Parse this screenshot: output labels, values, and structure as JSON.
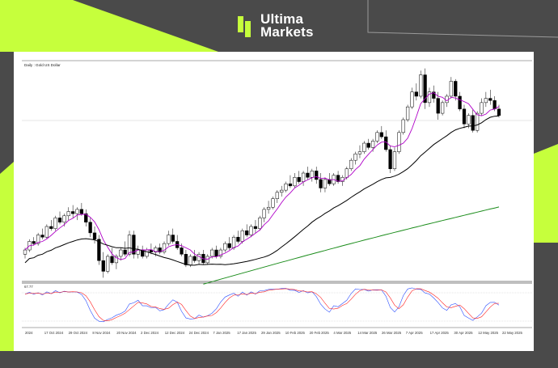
{
  "brand": {
    "line1": "Ultima",
    "line2": "Markets",
    "accent": "#c6ff3c"
  },
  "chart_data": {
    "type": "candlestick",
    "title": "Daily : Gold US Dollar",
    "oscillator_label": "67.77",
    "x_ticks": [
      "2024",
      "17 Oct 2024",
      "29 Oct 2024",
      "8 Nov 2024",
      "20 Nov 2024",
      "2 Dec 2024",
      "12 Dec 2024",
      "24 Dec 2024",
      "7 Jan 2025",
      "17 Jan 2025",
      "29 Jan 2025",
      "10 Feb 2025",
      "20 Feb 2025",
      "4 Mar 2025",
      "14 Mar 2025",
      "26 Mar 2025",
      "7 Apr 2025",
      "17 Apr 2025",
      "30 Apr 2025",
      "12 May 2025",
      "22 May 2025"
    ],
    "moving_averages": [
      {
        "color": "#b000c8"
      },
      {
        "color": "#000000"
      },
      {
        "color": "#1a8c1a"
      }
    ],
    "stochastic_colors": {
      "main": "#2a4dff",
      "signal": "#ff2020"
    },
    "candles": [
      [
        0,
        0.12,
        0.15,
        0.1,
        0.14
      ],
      [
        1,
        0.14,
        0.19,
        0.13,
        0.18
      ],
      [
        2,
        0.18,
        0.2,
        0.16,
        0.17
      ],
      [
        3,
        0.17,
        0.22,
        0.16,
        0.21
      ],
      [
        4,
        0.21,
        0.24,
        0.19,
        0.2
      ],
      [
        5,
        0.2,
        0.26,
        0.19,
        0.25
      ],
      [
        6,
        0.25,
        0.28,
        0.23,
        0.24
      ],
      [
        7,
        0.24,
        0.3,
        0.23,
        0.29
      ],
      [
        8,
        0.29,
        0.32,
        0.26,
        0.27
      ],
      [
        9,
        0.27,
        0.31,
        0.25,
        0.3
      ],
      [
        10,
        0.3,
        0.34,
        0.28,
        0.32
      ],
      [
        11,
        0.32,
        0.35,
        0.29,
        0.31
      ],
      [
        12,
        0.31,
        0.34,
        0.28,
        0.33
      ],
      [
        13,
        0.33,
        0.36,
        0.3,
        0.31
      ],
      [
        14,
        0.31,
        0.33,
        0.25,
        0.27
      ],
      [
        15,
        0.27,
        0.29,
        0.2,
        0.22
      ],
      [
        16,
        0.22,
        0.25,
        0.17,
        0.19
      ],
      [
        17,
        0.19,
        0.21,
        0.07,
        0.09
      ],
      [
        18,
        0.09,
        0.13,
        0.01,
        0.04
      ],
      [
        19,
        0.04,
        0.12,
        0.03,
        0.11
      ],
      [
        20,
        0.11,
        0.15,
        0.07,
        0.08
      ],
      [
        21,
        0.08,
        0.12,
        0.05,
        0.11
      ],
      [
        22,
        0.11,
        0.15,
        0.09,
        0.14
      ],
      [
        23,
        0.14,
        0.18,
        0.11,
        0.12
      ],
      [
        24,
        0.12,
        0.23,
        0.11,
        0.21
      ],
      [
        25,
        0.21,
        0.23,
        0.1,
        0.12
      ],
      [
        26,
        0.12,
        0.16,
        0.1,
        0.14
      ],
      [
        27,
        0.14,
        0.16,
        0.1,
        0.11
      ],
      [
        28,
        0.11,
        0.15,
        0.1,
        0.14
      ],
      [
        29,
        0.14,
        0.17,
        0.12,
        0.13
      ],
      [
        30,
        0.13,
        0.16,
        0.11,
        0.15
      ],
      [
        31,
        0.15,
        0.17,
        0.12,
        0.13
      ],
      [
        32,
        0.13,
        0.18,
        0.12,
        0.17
      ],
      [
        33,
        0.17,
        0.23,
        0.16,
        0.21
      ],
      [
        34,
        0.21,
        0.24,
        0.17,
        0.18
      ],
      [
        35,
        0.18,
        0.21,
        0.14,
        0.15
      ],
      [
        36,
        0.15,
        0.17,
        0.11,
        0.12
      ],
      [
        37,
        0.12,
        0.14,
        0.06,
        0.07
      ],
      [
        38,
        0.07,
        0.12,
        0.06,
        0.11
      ],
      [
        39,
        0.11,
        0.14,
        0.08,
        0.09
      ],
      [
        40,
        0.09,
        0.13,
        0.07,
        0.12
      ],
      [
        41,
        0.12,
        0.14,
        0.07,
        0.08
      ],
      [
        42,
        0.08,
        0.12,
        0.07,
        0.11
      ],
      [
        43,
        0.11,
        0.15,
        0.1,
        0.14
      ],
      [
        44,
        0.14,
        0.16,
        0.1,
        0.11
      ],
      [
        45,
        0.11,
        0.15,
        0.1,
        0.14
      ],
      [
        46,
        0.14,
        0.18,
        0.13,
        0.17
      ],
      [
        47,
        0.17,
        0.2,
        0.14,
        0.15
      ],
      [
        48,
        0.15,
        0.21,
        0.14,
        0.2
      ],
      [
        49,
        0.2,
        0.23,
        0.17,
        0.18
      ],
      [
        50,
        0.18,
        0.24,
        0.17,
        0.23
      ],
      [
        51,
        0.23,
        0.26,
        0.2,
        0.21
      ],
      [
        52,
        0.21,
        0.26,
        0.2,
        0.25
      ],
      [
        53,
        0.25,
        0.28,
        0.22,
        0.24
      ],
      [
        54,
        0.24,
        0.3,
        0.23,
        0.29
      ],
      [
        55,
        0.29,
        0.34,
        0.27,
        0.33
      ],
      [
        56,
        0.33,
        0.37,
        0.31,
        0.34
      ],
      [
        57,
        0.34,
        0.39,
        0.33,
        0.38
      ],
      [
        58,
        0.38,
        0.42,
        0.36,
        0.41
      ],
      [
        59,
        0.41,
        0.44,
        0.39,
        0.42
      ],
      [
        60,
        0.42,
        0.46,
        0.41,
        0.45
      ],
      [
        61,
        0.45,
        0.49,
        0.43,
        0.44
      ],
      [
        62,
        0.44,
        0.5,
        0.43,
        0.48
      ],
      [
        63,
        0.48,
        0.51,
        0.45,
        0.46
      ],
      [
        64,
        0.46,
        0.51,
        0.44,
        0.5
      ],
      [
        65,
        0.5,
        0.53,
        0.47,
        0.48
      ],
      [
        66,
        0.48,
        0.52,
        0.46,
        0.51
      ],
      [
        67,
        0.51,
        0.53,
        0.45,
        0.47
      ],
      [
        68,
        0.47,
        0.5,
        0.41,
        0.43
      ],
      [
        69,
        0.43,
        0.48,
        0.41,
        0.47
      ],
      [
        70,
        0.47,
        0.5,
        0.44,
        0.45
      ],
      [
        71,
        0.45,
        0.5,
        0.44,
        0.49
      ],
      [
        72,
        0.49,
        0.51,
        0.45,
        0.46
      ],
      [
        73,
        0.46,
        0.49,
        0.44,
        0.48
      ],
      [
        74,
        0.48,
        0.53,
        0.47,
        0.52
      ],
      [
        75,
        0.52,
        0.57,
        0.51,
        0.56
      ],
      [
        76,
        0.56,
        0.6,
        0.54,
        0.59
      ],
      [
        77,
        0.59,
        0.63,
        0.57,
        0.6
      ],
      [
        78,
        0.6,
        0.65,
        0.59,
        0.64
      ],
      [
        79,
        0.64,
        0.66,
        0.61,
        0.62
      ],
      [
        80,
        0.62,
        0.66,
        0.6,
        0.65
      ],
      [
        81,
        0.65,
        0.7,
        0.64,
        0.69
      ],
      [
        82,
        0.69,
        0.72,
        0.66,
        0.67
      ],
      [
        83,
        0.67,
        0.7,
        0.6,
        0.61
      ],
      [
        84,
        0.61,
        0.63,
        0.5,
        0.52
      ],
      [
        85,
        0.52,
        0.62,
        0.51,
        0.6
      ],
      [
        86,
        0.6,
        0.7,
        0.59,
        0.69
      ],
      [
        87,
        0.69,
        0.76,
        0.68,
        0.75
      ],
      [
        88,
        0.75,
        0.82,
        0.74,
        0.81
      ],
      [
        89,
        0.81,
        0.9,
        0.8,
        0.88
      ],
      [
        90,
        0.88,
        0.92,
        0.84,
        0.86
      ],
      [
        91,
        0.86,
        0.98,
        0.85,
        0.96
      ],
      [
        92,
        0.96,
        0.99,
        0.8,
        0.83
      ],
      [
        93,
        0.83,
        0.9,
        0.81,
        0.88
      ],
      [
        94,
        0.88,
        0.91,
        0.83,
        0.85
      ],
      [
        95,
        0.85,
        0.88,
        0.75,
        0.78
      ],
      [
        96,
        0.78,
        0.84,
        0.77,
        0.83
      ],
      [
        97,
        0.83,
        0.87,
        0.81,
        0.86
      ],
      [
        98,
        0.86,
        0.95,
        0.85,
        0.93
      ],
      [
        99,
        0.93,
        0.94,
        0.84,
        0.86
      ],
      [
        100,
        0.86,
        0.88,
        0.79,
        0.8
      ],
      [
        101,
        0.8,
        0.82,
        0.71,
        0.73
      ],
      [
        102,
        0.73,
        0.78,
        0.71,
        0.77
      ],
      [
        103,
        0.77,
        0.8,
        0.69,
        0.7
      ],
      [
        104,
        0.7,
        0.79,
        0.69,
        0.78
      ],
      [
        105,
        0.78,
        0.85,
        0.77,
        0.83
      ],
      [
        106,
        0.83,
        0.88,
        0.81,
        0.85
      ],
      [
        107,
        0.85,
        0.89,
        0.82,
        0.84
      ],
      [
        108,
        0.84,
        0.86,
        0.79,
        0.8
      ],
      [
        109,
        0.8,
        0.82,
        0.76,
        0.77
      ]
    ]
  }
}
